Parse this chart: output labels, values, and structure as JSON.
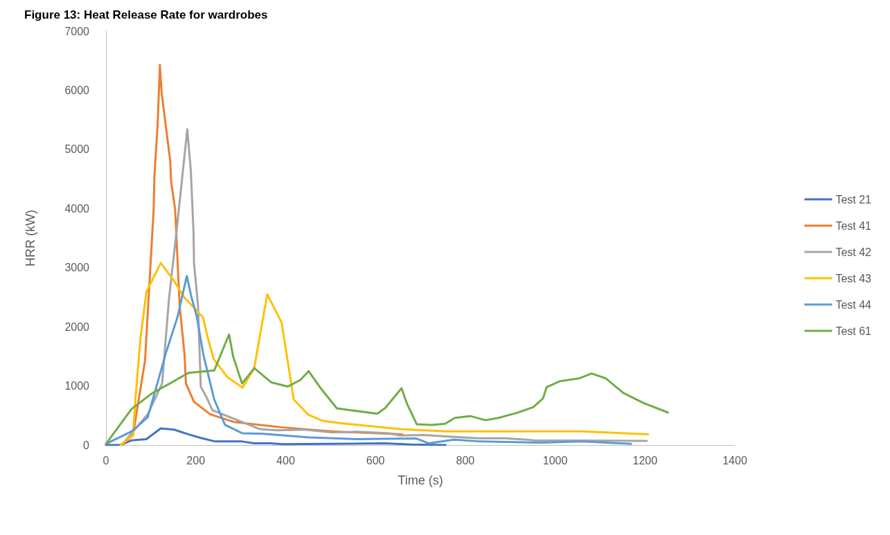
{
  "chart_data": {
    "type": "line",
    "title": "Figure 13: Heat Release Rate for wardrobes",
    "xlabel": "Time (s)",
    "ylabel": "HRR (kW)",
    "xlim": [
      0,
      1400
    ],
    "xticks": [
      0,
      200,
      400,
      600,
      800,
      1000,
      1200,
      1400
    ],
    "ylim": [
      0,
      7000
    ],
    "yticks": [
      0,
      1000,
      2000,
      3000,
      4000,
      5000,
      6000,
      7000
    ],
    "grid": false,
    "legend": "right",
    "marker": "none",
    "line_style": "solid",
    "series": [
      {
        "name": "Test 21",
        "color": "#4472c4",
        "x": [
          0,
          33,
          57,
          90,
          122,
          152,
          184,
          211,
          243,
          303,
          330,
          365,
          394,
          500,
          620,
          680,
          756
        ],
        "values": [
          0,
          0,
          80,
          100,
          280,
          260,
          180,
          120,
          60,
          60,
          30,
          30,
          15,
          20,
          30,
          10,
          0
        ]
      },
      {
        "name": "Test 41",
        "color": "#ed7d31",
        "x": [
          33,
          60,
          87,
          106,
          108,
          115,
          120,
          124,
          143,
          145,
          154,
          164,
          175,
          178,
          196,
          232,
          285,
          391,
          503,
          660
        ],
        "values": [
          0,
          160,
          1430,
          3960,
          4570,
          5420,
          6430,
          5950,
          4810,
          4460,
          3980,
          2360,
          1520,
          1040,
          730,
          520,
          390,
          300,
          230,
          180
        ]
      },
      {
        "name": "Test 42",
        "color": "#a5a5a5",
        "x": [
          35,
          93,
          125,
          140,
          158,
          181,
          189,
          195,
          196,
          205,
          211,
          223,
          237,
          342,
          380,
          441,
          503,
          558,
          630,
          655,
          706,
          756,
          828,
          889,
          954,
          1204
        ],
        "values": [
          0,
          520,
          1040,
          2450,
          3680,
          5340,
          4630,
          3580,
          3080,
          2350,
          990,
          820,
          590,
          270,
          250,
          260,
          215,
          225,
          200,
          160,
          170,
          145,
          115,
          115,
          80,
          70
        ]
      },
      {
        "name": "Test 43",
        "color": "#ffc000",
        "x": [
          33,
          60,
          66,
          77,
          90,
          122,
          152,
          175,
          216,
          226,
          240,
          270,
          304,
          330,
          359,
          391,
          418,
          451,
          482,
          523,
          655,
          756,
          1058,
          1207
        ],
        "values": [
          0,
          170,
          820,
          1820,
          2590,
          3080,
          2770,
          2490,
          2160,
          1830,
          1450,
          1150,
          970,
          1300,
          2550,
          2070,
          770,
          510,
          410,
          370,
          270,
          230,
          230,
          180
        ]
      },
      {
        "name": "Test 44",
        "color": "#5b9bd5",
        "x": [
          0,
          57,
          93,
          134,
          159,
          180,
          190,
          202,
          217,
          241,
          265,
          303,
          350,
          452,
          554,
          691,
          718,
          775,
          834,
          973,
          1058,
          1169
        ],
        "values": [
          20,
          230,
          470,
          1570,
          2160,
          2860,
          2510,
          2180,
          1520,
          770,
          340,
          200,
          190,
          130,
          100,
          110,
          30,
          90,
          60,
          40,
          60,
          20
        ]
      },
      {
        "name": "Test 61",
        "color": "#70ad47",
        "x": [
          0,
          57,
          102,
          184,
          241,
          274,
          283,
          303,
          330,
          368,
          405,
          433,
          451,
          478,
          514,
          604,
          622,
          658,
          670,
          692,
          726,
          755,
          777,
          811,
          845,
          874,
          913,
          951,
          973,
          981,
          1011,
          1055,
          1081,
          1112,
          1152,
          1197,
          1251
        ],
        "values": [
          20,
          610,
          870,
          1220,
          1260,
          1870,
          1500,
          1040,
          1300,
          1060,
          990,
          1100,
          1250,
          960,
          620,
          530,
          630,
          960,
          700,
          350,
          340,
          360,
          460,
          490,
          420,
          460,
          540,
          640,
          790,
          980,
          1080,
          1130,
          1210,
          1130,
          880,
          710,
          550
        ]
      }
    ]
  }
}
